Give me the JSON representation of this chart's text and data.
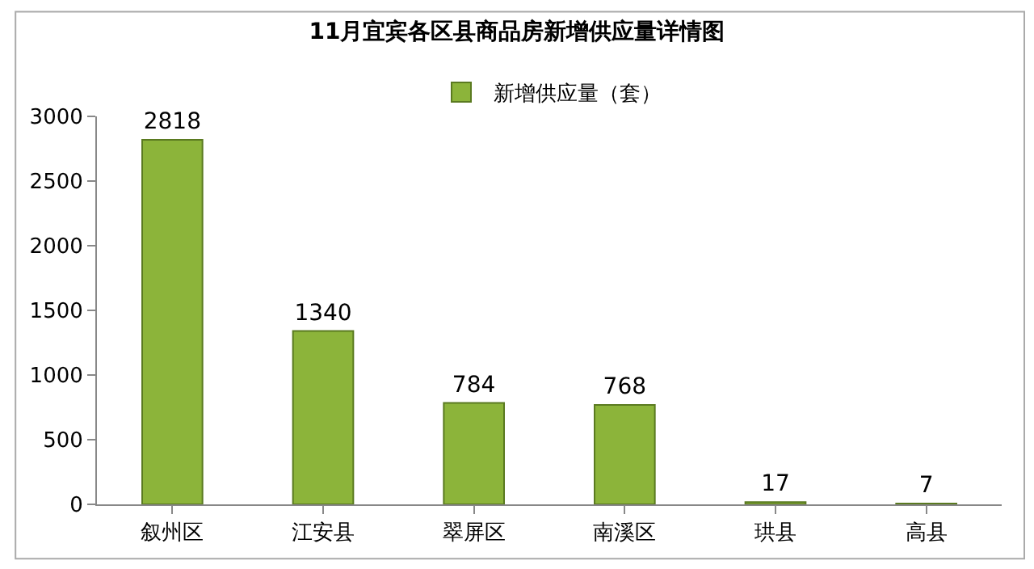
{
  "chart_data": {
    "type": "bar",
    "title": "11月宜宾各区县商品房新增供应量详情图",
    "categories": [
      "叙州区",
      "江安县",
      "翠屏区",
      "南溪区",
      "珙县",
      "高县"
    ],
    "series": [
      {
        "name": "新增供应量（套）",
        "color": "#8cb43a",
        "values": [
          2818,
          1340,
          784,
          768,
          17,
          7
        ]
      }
    ],
    "ylim": [
      0,
      3000
    ],
    "yticks": [
      0,
      500,
      1000,
      1500,
      2000,
      2500,
      3000
    ],
    "legend": "top",
    "data_labels": true
  }
}
